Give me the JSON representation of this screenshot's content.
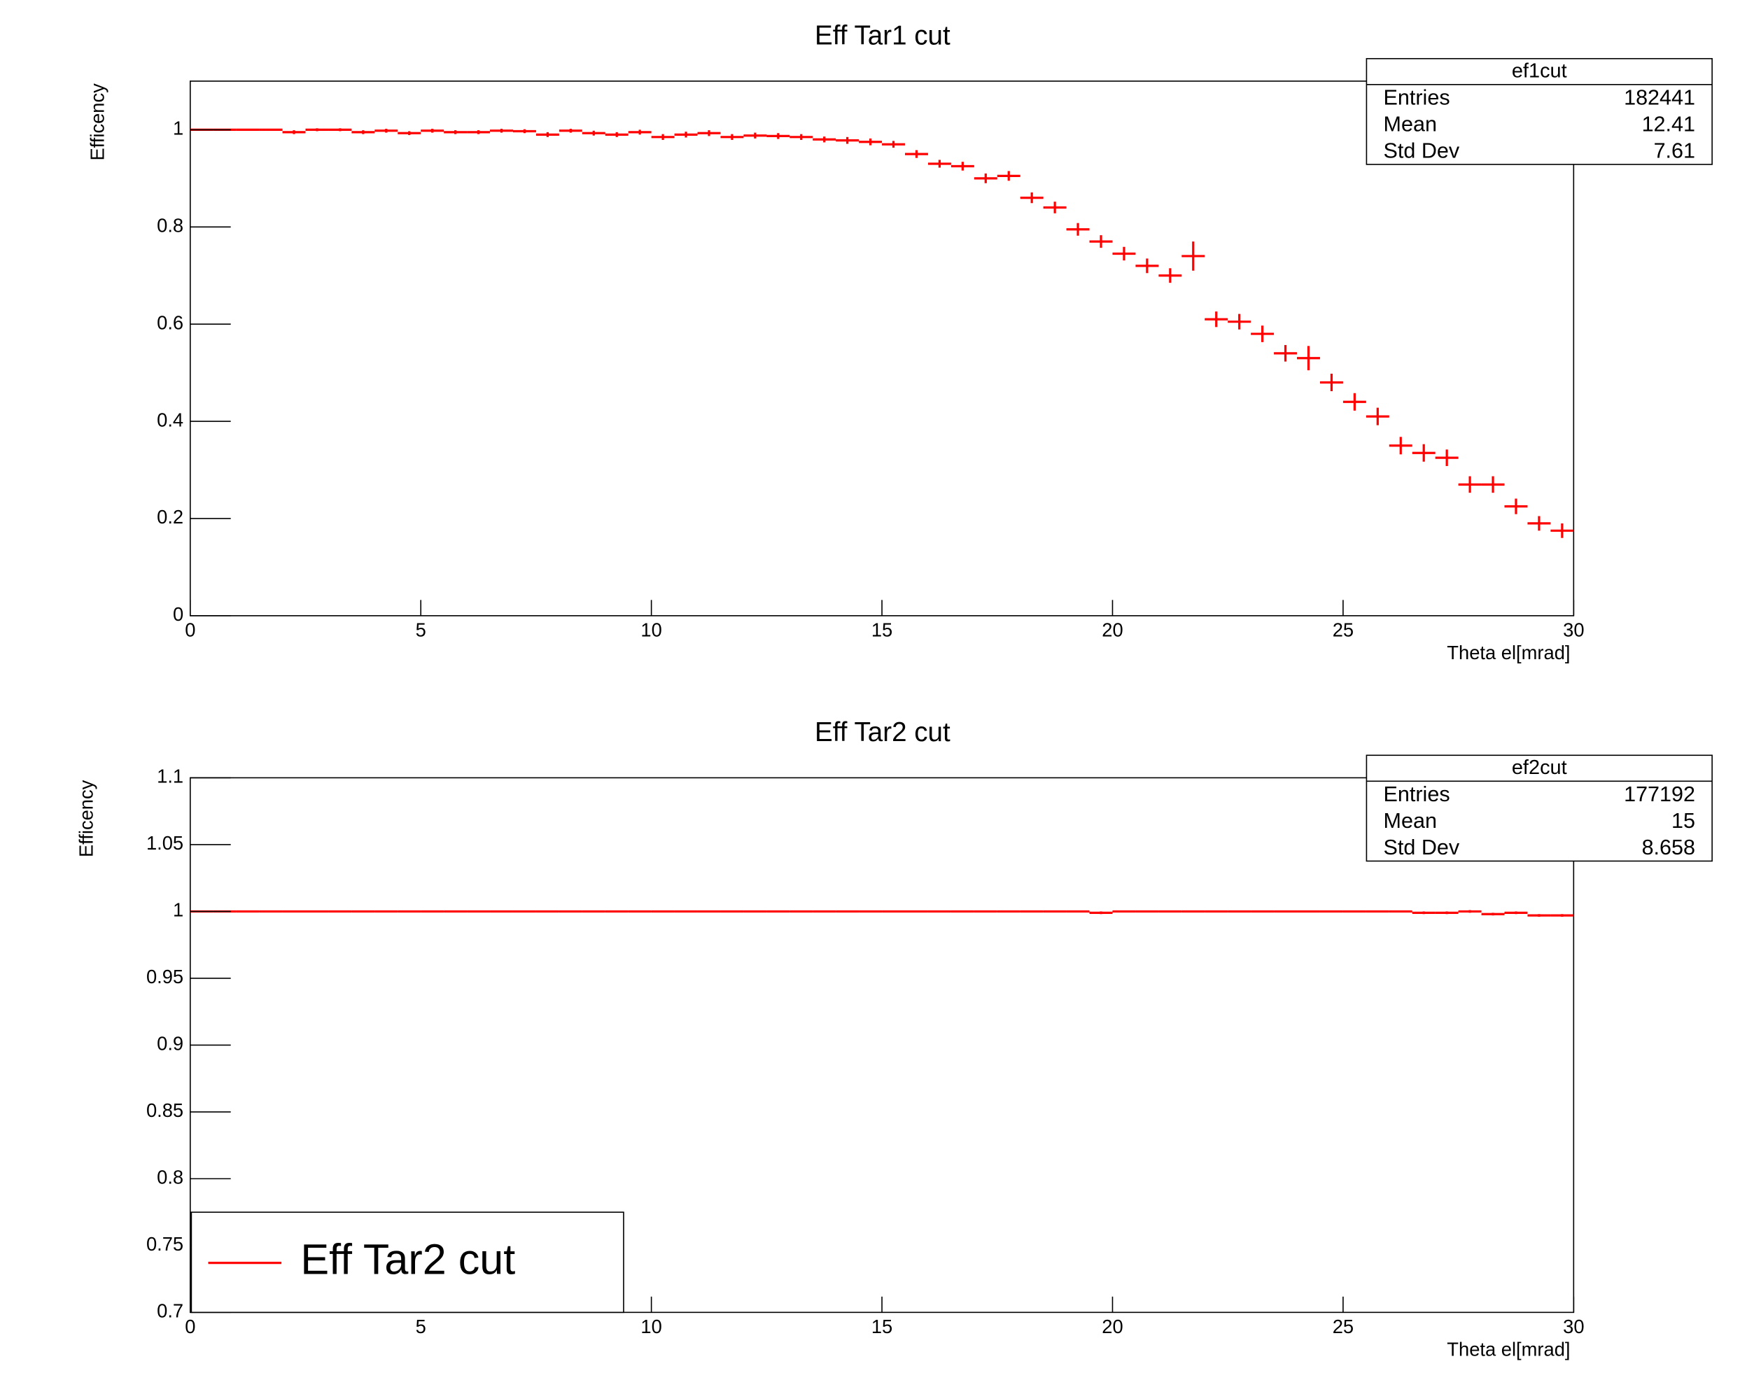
{
  "chart_data": [
    {
      "type": "histogram",
      "title": "Eff Tar1 cut",
      "x_label": "Theta el[mrad]",
      "y_label": "Efficency",
      "bins": [
        0,
        0.5,
        1,
        1.5,
        2,
        2.5,
        3,
        3.5,
        4,
        4.5,
        5,
        5.5,
        6,
        6.5,
        7,
        7.5,
        8,
        8.5,
        9,
        9.5,
        10,
        10.5,
        11,
        11.5,
        12,
        12.5,
        13,
        13.5,
        14,
        14.5,
        15,
        15.5,
        16,
        16.5,
        17,
        17.5,
        18,
        18.5,
        19,
        19.5,
        20,
        20.5,
        21,
        21.5,
        22,
        22.5,
        23,
        23.5,
        24,
        24.5,
        25,
        25.5,
        26,
        26.5,
        27,
        27.5,
        28,
        28.5,
        29,
        29.5,
        30
      ],
      "values": [
        1,
        1,
        1,
        1,
        0.995,
        1,
        1,
        0.995,
        0.998,
        0.993,
        0.998,
        0.995,
        0.995,
        0.998,
        0.997,
        0.99,
        0.998,
        0.993,
        0.99,
        0.995,
        0.985,
        0.99,
        0.993,
        0.985,
        0.988,
        0.987,
        0.985,
        0.98,
        0.978,
        0.975,
        0.97,
        0.95,
        0.93,
        0.925,
        0.9,
        0.905,
        0.86,
        0.84,
        0.795,
        0.77,
        0.745,
        0.72,
        0.7,
        0.74,
        0.61,
        0.605,
        0.58,
        0.54,
        0.53,
        0.48,
        0.44,
        0.41,
        0.35,
        0.335,
        0.325,
        0.27,
        0.27,
        0.225,
        0.19,
        0.175
      ],
      "errors": [
        0,
        0,
        0,
        0,
        0.004,
        0.003,
        0.003,
        0.004,
        0.004,
        0.004,
        0.004,
        0.004,
        0.004,
        0.004,
        0.004,
        0.005,
        0.004,
        0.005,
        0.005,
        0.005,
        0.006,
        0.006,
        0.006,
        0.006,
        0.006,
        0.006,
        0.006,
        0.006,
        0.007,
        0.007,
        0.007,
        0.008,
        0.008,
        0.009,
        0.01,
        0.01,
        0.011,
        0.012,
        0.013,
        0.013,
        0.014,
        0.015,
        0.015,
        0.03,
        0.016,
        0.016,
        0.017,
        0.017,
        0.025,
        0.018,
        0.018,
        0.018,
        0.018,
        0.018,
        0.017,
        0.017,
        0.017,
        0.016,
        0.015,
        0.015
      ],
      "color": "#ff0000",
      "xlim": [
        0,
        30
      ],
      "xticks": [
        0,
        5,
        10,
        15,
        20,
        25,
        30
      ],
      "ylim": [
        0,
        1.1
      ],
      "yticks": [
        0,
        0.2,
        0.4,
        0.6,
        0.8,
        1
      ],
      "stats": {
        "title": "ef1cut",
        "rows": [
          [
            "Entries",
            182441
          ],
          [
            "Mean",
            12.41
          ],
          [
            "Std Dev",
            7.61
          ]
        ]
      }
    },
    {
      "type": "histogram",
      "title": "Eff Tar2 cut",
      "x_label": "Theta el[mrad]",
      "y_label": "Efficency",
      "bins": [
        0,
        0.5,
        1,
        1.5,
        2,
        2.5,
        3,
        3.5,
        4,
        4.5,
        5,
        5.5,
        6,
        6.5,
        7,
        7.5,
        8,
        8.5,
        9,
        9.5,
        10,
        10.5,
        11,
        11.5,
        12,
        12.5,
        13,
        13.5,
        14,
        14.5,
        15,
        15.5,
        16,
        16.5,
        17,
        17.5,
        18,
        18.5,
        19,
        19.5,
        20,
        20.5,
        21,
        21.5,
        22,
        22.5,
        23,
        23.5,
        24,
        24.5,
        25,
        25.5,
        26,
        26.5,
        27,
        27.5,
        28,
        28.5,
        29,
        29.5,
        30
      ],
      "series": [
        {
          "name": "Eff Tar2 cut",
          "color": "#ff0000",
          "values": [
            1,
            1,
            1,
            1,
            1,
            1,
            1,
            1,
            1,
            1,
            1,
            1,
            1,
            1,
            1,
            1,
            1,
            1,
            1,
            1,
            1,
            1,
            1,
            1,
            1,
            1,
            1,
            1,
            1,
            1,
            1,
            1,
            1,
            1,
            1,
            1,
            1,
            1,
            1,
            0.999,
            1,
            1,
            1,
            1,
            1,
            1,
            1,
            1,
            1,
            1,
            1,
            1,
            1,
            0.999,
            0.999,
            1,
            0.998,
            0.999,
            0.997,
            0.997
          ],
          "errors": [
            0,
            0,
            0,
            0,
            0,
            0,
            0,
            0,
            0,
            0,
            0,
            0,
            0,
            0,
            0,
            0,
            0,
            0,
            0,
            0,
            0,
            0,
            0,
            0,
            0,
            0,
            0,
            0,
            0,
            0,
            0,
            0,
            0,
            0,
            0,
            0,
            0,
            0,
            0,
            0.001,
            0,
            0,
            0,
            0,
            0,
            0,
            0,
            0,
            0,
            0,
            0,
            0,
            0,
            0.001,
            0.001,
            0.001,
            0.001,
            0.001,
            0.001,
            0.001
          ]
        }
      ],
      "xlim": [
        0,
        30
      ],
      "xticks": [
        0,
        5,
        10,
        15,
        20,
        25,
        30
      ],
      "ylim": [
        0.7,
        1.1
      ],
      "yticks": [
        0.7,
        0.75,
        0.8,
        0.85,
        0.9,
        0.95,
        1,
        1.05,
        1.1
      ],
      "stats": {
        "title": "ef2cut",
        "rows": [
          [
            "Entries",
            177192
          ],
          [
            "Mean",
            15
          ],
          [
            "Std Dev",
            8.658
          ]
        ]
      }
    }
  ]
}
